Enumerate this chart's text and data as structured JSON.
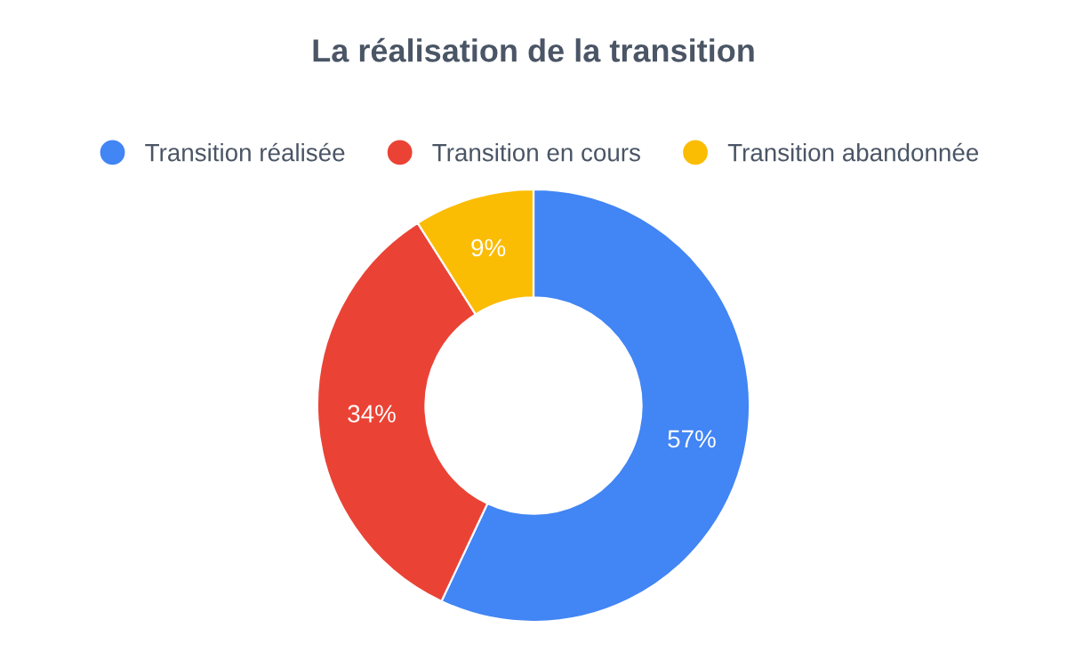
{
  "chart_data": {
    "type": "donut",
    "title": "La réalisation de la transition",
    "categories": [
      "Transition réalisée",
      "Transition en cours",
      "Transition abandonnée"
    ],
    "values": [
      57,
      34,
      9
    ],
    "colors": [
      "#4285f4",
      "#ea4335",
      "#fbbc04"
    ],
    "value_labels": [
      "57%",
      "34%",
      "9%"
    ],
    "legend": "top"
  }
}
